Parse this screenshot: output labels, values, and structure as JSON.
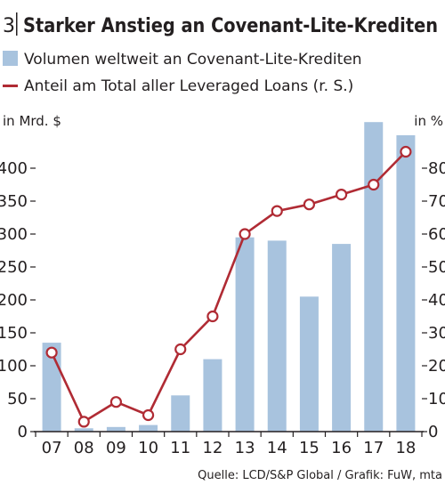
{
  "header": {
    "number": "3",
    "title": "Starker Anstieg an Covenant-Lite-Krediten"
  },
  "source": "Quelle: LCD/S&P Global / Grafik: FuW, mta",
  "colors": {
    "bar": "#a8c3de",
    "line": "#b02b34",
    "marker_fill": "#ffffff",
    "grid": "#231f20",
    "text": "#231f20"
  },
  "chart_data": {
    "type": "bar",
    "categories": [
      "07",
      "08",
      "09",
      "10",
      "11",
      "12",
      "13",
      "14",
      "15",
      "16",
      "17",
      "18"
    ],
    "series": [
      {
        "name": "Volumen weltweit an Covenant-Lite-Krediten",
        "type": "bar",
        "axis": "left",
        "values": [
          135,
          5,
          7,
          10,
          55,
          110,
          295,
          290,
          205,
          285,
          470,
          450
        ]
      },
      {
        "name": "Anteil am Total aller Leveraged Loans (r. S.)",
        "type": "line",
        "axis": "right",
        "values": [
          24,
          3,
          9,
          5,
          25,
          35,
          60,
          67,
          69,
          72,
          75,
          85
        ]
      }
    ],
    "left_axis": {
      "label": "in Mrd. $",
      "ticks": [
        "0",
        "50",
        "100",
        "150",
        "200",
        "250",
        "300",
        "350",
        "400"
      ],
      "range": [
        0,
        450
      ]
    },
    "right_axis": {
      "label": "in %",
      "ticks": [
        "0",
        "10",
        "20",
        "30",
        "40",
        "50",
        "60",
        "70",
        "80"
      ],
      "range": [
        0,
        90
      ]
    },
    "grid": false,
    "legend_position": "top"
  }
}
